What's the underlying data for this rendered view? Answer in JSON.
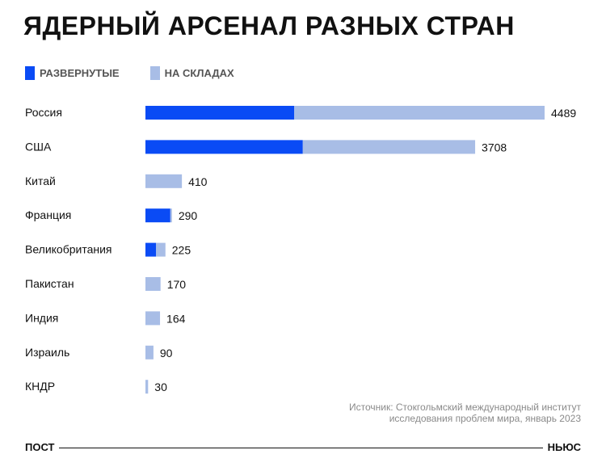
{
  "title": "ЯДЕРНЫЙ АРСЕНАЛ РАЗНЫХ СТРАН",
  "legend": [
    {
      "label": "РАЗВЕРНУТЫЕ",
      "color": "#0a4bf5"
    },
    {
      "label": "НА СКЛАДАХ",
      "color": "#a8bde6"
    }
  ],
  "chart_data": {
    "type": "bar",
    "orientation": "horizontal",
    "stacked": true,
    "categories": [
      "Россия",
      "США",
      "Китай",
      "Франция",
      "Великобритания",
      "Пакистан",
      "Индия",
      "Израиль",
      "КНДР"
    ],
    "series": [
      {
        "name": "РАЗВЕРНУТЫЕ",
        "color": "#0a4bf5",
        "values": [
          1674,
          1770,
          0,
          280,
          120,
          0,
          0,
          0,
          0
        ]
      },
      {
        "name": "НА СКЛАДАХ",
        "color": "#a8bde6",
        "values": [
          2815,
          1938,
          410,
          10,
          105,
          170,
          164,
          90,
          30
        ]
      }
    ],
    "totals": [
      "4489",
      "3708",
      "410",
      "290",
      "225",
      "170",
      "164",
      "90",
      "30"
    ],
    "xlim": [
      0,
      4489
    ],
    "grid": false,
    "legend_position": "top-left"
  },
  "source": {
    "line1": "Источник: Стокгольмский международный институт",
    "line2": "исследования проблем мира, январь 2023"
  },
  "footer": {
    "left": "ПОСТ",
    "right": "НЬЮС"
  }
}
